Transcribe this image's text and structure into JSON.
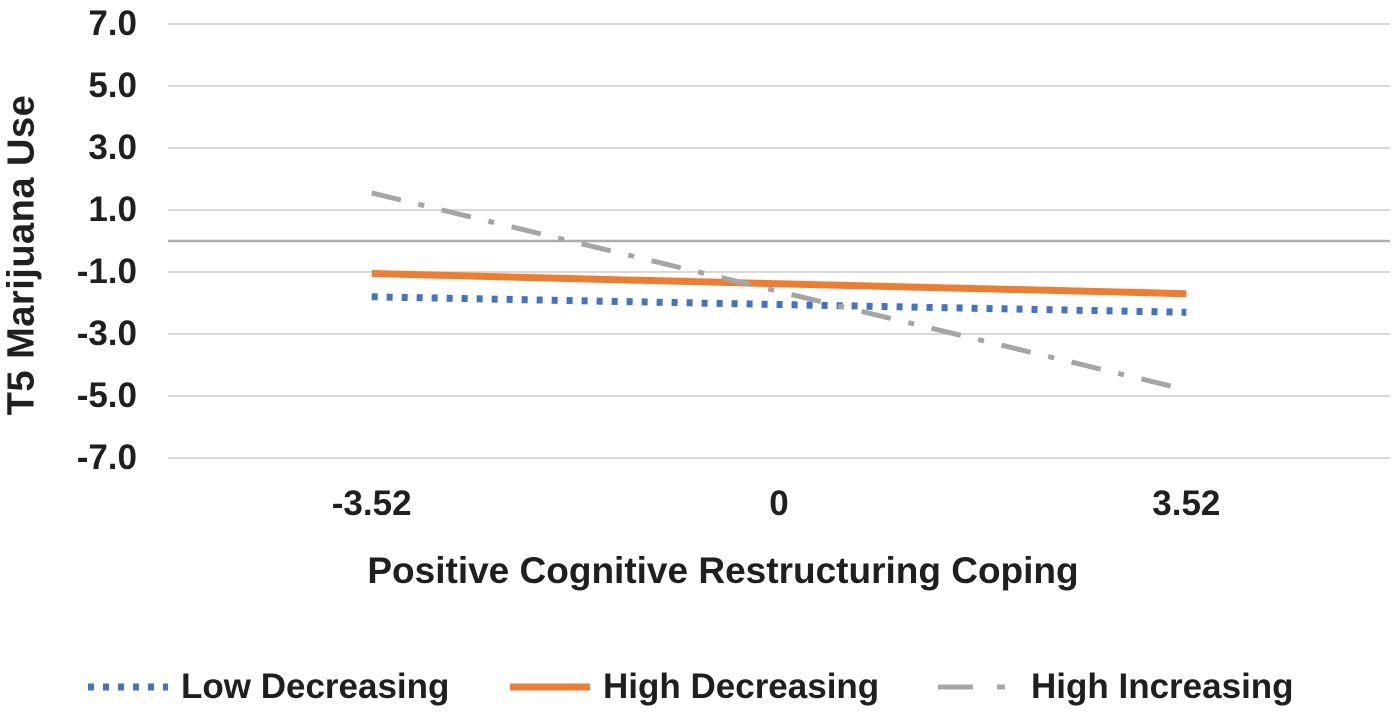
{
  "chart_data": {
    "type": "line",
    "title": "",
    "xlabel": "Positive Cognitive Restructuring Coping",
    "ylabel": "T5 Marijuana Use",
    "x_categories": [
      "-3.52",
      "0",
      "3.52"
    ],
    "x_numeric": [
      -3.52,
      0,
      3.52
    ],
    "yticks": [
      "7.0",
      "5.0",
      "3.0",
      "1.0",
      "-1.0",
      "-3.0",
      "-5.0",
      "-7.0"
    ],
    "ytick_values": [
      7,
      5,
      3,
      1,
      -1,
      -3,
      -5,
      -7
    ],
    "ylim": [
      -7.5,
      7.5
    ],
    "grid": true,
    "legend_position": "bottom",
    "series": [
      {
        "name": "Low Decreasing",
        "color": "#4472C4",
        "style": "dotted",
        "values": [
          -1.8,
          -2.05,
          -2.3
        ]
      },
      {
        "name": "High Decreasing",
        "color": "#ED7D31",
        "style": "solid",
        "values": [
          -1.05,
          -1.38,
          -1.7
        ]
      },
      {
        "name": "High Increasing",
        "color": "#A5A5A5",
        "style": "dash-dot",
        "values": [
          1.55,
          -1.63,
          -4.8
        ]
      }
    ],
    "colors": {
      "gridline": "#D9D9D9",
      "zero_axis": "#ADADAD",
      "text": "#1f1f1f"
    }
  }
}
